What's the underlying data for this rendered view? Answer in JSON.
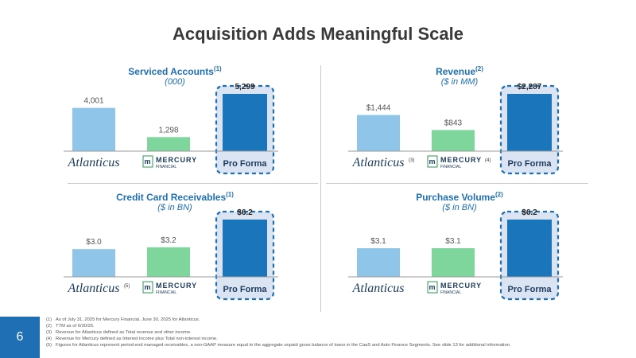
{
  "slide": {
    "title": "Acquisition Adds Meaningful Scale",
    "number": "6"
  },
  "labels": {
    "pro_forma": "Pro Forma",
    "atlanticus": "Atlanticus",
    "mercury_mark": "m",
    "mercury": "MERCURY",
    "mercury_sub": "FINANCIAL"
  },
  "colors": {
    "atlanticus": "#8ec5e8",
    "mercury": "#7fd69c",
    "pro_forma": "#1a75ba",
    "highlight_bg": "#dbe4f3",
    "highlight_border": "#1f6fb4"
  },
  "chart_data": [
    {
      "type": "bar",
      "title": "Serviced Accounts",
      "title_ref": "(1)",
      "subtitle": "(000)",
      "categories": [
        "Atlanticus",
        "Mercury Financial",
        "Pro Forma"
      ],
      "values": [
        4001,
        1298,
        5299
      ],
      "value_labels": [
        "4,001",
        "1,298",
        "5,299"
      ],
      "logo_refs": [
        "",
        ""
      ]
    },
    {
      "type": "bar",
      "title": "Revenue",
      "title_ref": "(2)",
      "subtitle": "($ in MM)",
      "categories": [
        "Atlanticus",
        "Mercury Financial",
        "Pro Forma"
      ],
      "values": [
        1444,
        843,
        2287
      ],
      "value_labels": [
        "$1,444",
        "$843",
        "$2,287"
      ],
      "logo_refs": [
        "(3)",
        "(4)"
      ]
    },
    {
      "type": "bar",
      "title": "Credit Card Receivables",
      "title_ref": "(1)",
      "subtitle": "($ in BN)",
      "categories": [
        "Atlanticus",
        "Mercury Financial",
        "Pro Forma"
      ],
      "values": [
        3.0,
        3.2,
        6.2
      ],
      "value_labels": [
        "$3.0",
        "$3.2",
        "$6.2"
      ],
      "logo_refs": [
        "(5)",
        ""
      ]
    },
    {
      "type": "bar",
      "title": "Purchase Volume",
      "title_ref": "(2)",
      "subtitle": "($ in BN)",
      "categories": [
        "Atlanticus",
        "Mercury Financial",
        "Pro Forma"
      ],
      "values": [
        3.1,
        3.1,
        6.2
      ],
      "value_labels": [
        "$3.1",
        "$3.1",
        "$6.2"
      ],
      "logo_refs": [
        "",
        ""
      ]
    }
  ],
  "footnotes": [
    {
      "idx": "(1)",
      "text": "As of July 31, 2025 for Mercury Financial. June 30, 2025 for Atlanticus."
    },
    {
      "idx": "(2)",
      "text": "TTM as of 6/30/25."
    },
    {
      "idx": "(3)",
      "text": "Revenue for Atlanticus defined as Total revenue and other income."
    },
    {
      "idx": "(4)",
      "text": "Revenue for Mercury defined as Interest income plus Total non-interest income."
    },
    {
      "idx": "(5)",
      "text": "Figures for Atlanticus represent period-end managed receivables, a non-GAAP measure equal to the aggregate unpaid gross balance of loans in the CaaS and Auto Finance Segments. See slide 13 for additional information."
    }
  ]
}
